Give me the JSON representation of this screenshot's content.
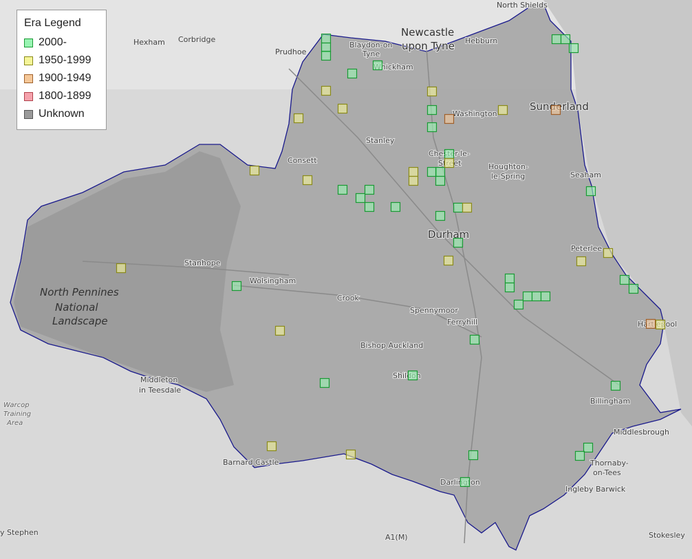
{
  "legend": {
    "title": "Era Legend",
    "items": [
      {
        "label": "2000-",
        "fill": "#99f5b3",
        "stroke": "#1a9a35"
      },
      {
        "label": "1950-1999",
        "fill": "#f5f599",
        "stroke": "#8a8a1a"
      },
      {
        "label": "1900-1949",
        "fill": "#f5c899",
        "stroke": "#a0602a"
      },
      {
        "label": "1800-1899",
        "fill": "#f5a3ad",
        "stroke": "#b0404a"
      },
      {
        "label": "Unknown",
        "fill": "#9a9a9a",
        "stroke": "#555555"
      }
    ]
  },
  "boundary_color": "#1a1a8c",
  "places": {
    "north_shields": "North Shields",
    "newcastle_1": "Newcastle",
    "newcastle_2": "upon Tyne",
    "hebburn": "Hebburn",
    "hexham": "Hexham",
    "corbridge": "Corbridge",
    "prudhoe": "Prudhoe",
    "blaydon_1": "Blaydon-on",
    "blaydon_2": "Tyne",
    "whickham": "Whickham",
    "washington": "Washington",
    "sunderland": "Sunderland",
    "stanley": "Stanley",
    "consett": "Consett",
    "chester_1": "Chester-le-",
    "chester_2": "Street",
    "houghton_1": "Houghton-",
    "houghton_2": "le-Spring",
    "seaham": "Seaham",
    "durham": "Durham",
    "peterlee": "Peterlee",
    "stanhope": "Stanhope",
    "wolsingham": "Wolsingham",
    "crook": "Crook",
    "spennymoor": "Spennymoor",
    "ferryhill": "Ferryhill",
    "hartlepool": "Hartlepool",
    "bishop_auckland": "Bishop Auckland",
    "shildon": "Shildon",
    "middleton_1": "Middleton",
    "middleton_2": "in Teesdale",
    "billingham": "Billingham",
    "middlesbrough": "Middlesbrough",
    "thornaby_1": "Thornaby-",
    "thornaby_2": "on-Tees",
    "ingleby": "Ingleby Barwick",
    "barnard_castle": "Barnard Castle",
    "darlington": "Darlington",
    "stokesley": "Stokesley",
    "stephen": "y Stephen",
    "a1m": "A1(M)",
    "warcop_1": "Warcop",
    "warcop_2": "Training",
    "warcop_3": "Area",
    "park_1": "North Pennines",
    "park_2": "National",
    "park_3": "Landscape"
  },
  "markers": [
    {
      "era": "2000-"
    },
    {
      "era": "2000-"
    },
    {
      "era": "2000-"
    },
    {
      "era": "2000-"
    },
    {
      "era": "2000-"
    },
    {
      "era": "2000-"
    },
    {
      "era": "2000-"
    },
    {
      "era": "2000-"
    },
    {
      "era": "2000-"
    },
    {
      "era": "2000-"
    },
    {
      "era": "2000-"
    },
    {
      "era": "2000-"
    },
    {
      "era": "2000-"
    },
    {
      "era": "2000-"
    },
    {
      "era": "2000-"
    },
    {
      "era": "2000-"
    },
    {
      "era": "2000-"
    },
    {
      "era": "2000-"
    },
    {
      "era": "2000-"
    },
    {
      "era": "2000-"
    },
    {
      "era": "2000-"
    },
    {
      "era": "2000-"
    },
    {
      "era": "2000-"
    },
    {
      "era": "2000-"
    },
    {
      "era": "2000-"
    },
    {
      "era": "2000-"
    },
    {
      "era": "2000-"
    },
    {
      "era": "2000-"
    },
    {
      "era": "2000-"
    },
    {
      "era": "2000-"
    },
    {
      "era": "2000-"
    },
    {
      "era": "2000-"
    },
    {
      "era": "2000-"
    },
    {
      "era": "2000-"
    },
    {
      "era": "2000-"
    },
    {
      "era": "2000-"
    },
    {
      "era": "2000-"
    },
    {
      "era": "2000-"
    },
    {
      "era": "2000-"
    },
    {
      "era": "2000-"
    },
    {
      "era": "1950-1999"
    },
    {
      "era": "1950-1999"
    },
    {
      "era": "1950-1999"
    },
    {
      "era": "1950-1999"
    },
    {
      "era": "1950-1999"
    },
    {
      "era": "1950-1999"
    },
    {
      "era": "1950-1999"
    },
    {
      "era": "1950-1999"
    },
    {
      "era": "1950-1999"
    },
    {
      "era": "1950-1999"
    },
    {
      "era": "1950-1999"
    },
    {
      "era": "1950-1999"
    },
    {
      "era": "1950-1999"
    },
    {
      "era": "1950-1999"
    },
    {
      "era": "1950-1999"
    },
    {
      "era": "1950-1999"
    },
    {
      "era": "1950-1999"
    },
    {
      "era": "1950-1999"
    },
    {
      "era": "1950-1999"
    },
    {
      "era": "1900-1949"
    },
    {
      "era": "1900-1949"
    },
    {
      "era": "1900-1949"
    }
  ]
}
